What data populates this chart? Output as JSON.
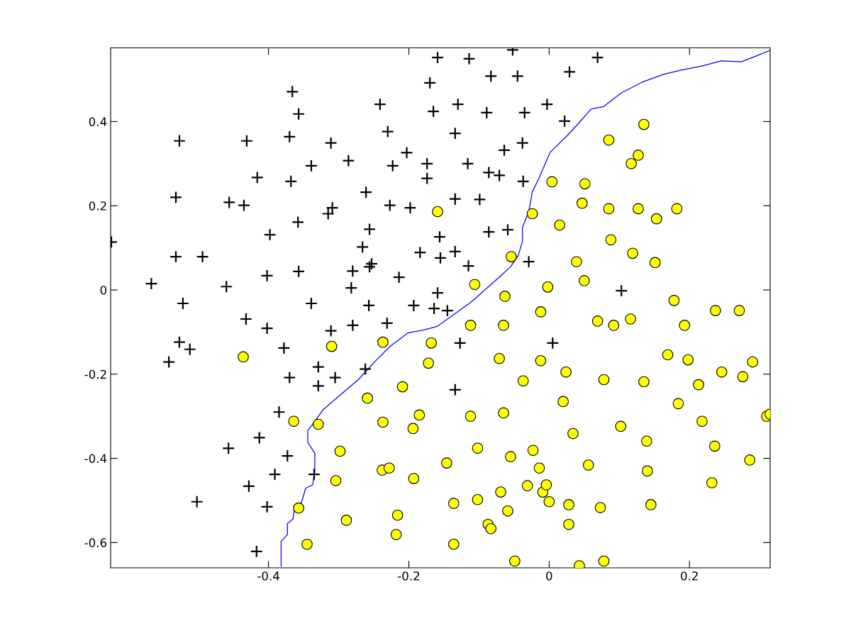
{
  "chart_data": {
    "type": "scatter",
    "xlim": [
      -0.625,
      0.315
    ],
    "ylim": [
      -0.66,
      0.575
    ],
    "xticks": [
      -0.4,
      -0.2,
      0,
      0.2
    ],
    "yticks": [
      -0.6,
      -0.4,
      -0.2,
      0,
      0.2,
      0.4
    ],
    "grid": false,
    "series": [
      {
        "marker": "cross",
        "color": "#000000",
        "x": [
          -0.624,
          -0.567,
          -0.527,
          -0.532,
          -0.532,
          -0.522,
          -0.494,
          -0.527,
          -0.542,
          -0.512,
          -0.456,
          -0.435,
          -0.431,
          -0.416,
          -0.398,
          -0.402,
          -0.46,
          -0.432,
          -0.402,
          -0.366,
          -0.357,
          -0.37,
          -0.368,
          -0.358,
          -0.357,
          -0.339,
          -0.339,
          -0.378,
          -0.37,
          -0.385,
          -0.413,
          -0.373,
          -0.391,
          -0.428,
          -0.457,
          -0.502,
          -0.402,
          -0.417,
          -0.335,
          -0.329,
          -0.329,
          -0.311,
          -0.309,
          -0.315,
          -0.311,
          -0.305,
          -0.286,
          -0.28,
          -0.282,
          -0.28,
          -0.241,
          -0.23,
          -0.261,
          -0.266,
          -0.256,
          -0.256,
          -0.253,
          -0.257,
          -0.262,
          -0.223,
          -0.227,
          -0.214,
          -0.231,
          -0.203,
          -0.198,
          -0.193,
          -0.184,
          -0.174,
          -0.174,
          -0.159,
          -0.17,
          -0.165,
          -0.164,
          -0.159,
          -0.156,
          -0.155,
          -0.145,
          -0.134,
          -0.134,
          -0.134,
          -0.13,
          -0.134,
          -0.127,
          -0.114,
          -0.116,
          -0.115,
          -0.099,
          -0.083,
          -0.089,
          -0.086,
          -0.071,
          -0.086,
          -0.064,
          -0.059,
          -0.052,
          -0.045,
          -0.035,
          -0.038,
          -0.037,
          -0.003,
          -0.029,
          0.029,
          0.022,
          0.069,
          0.005,
          0.103
        ],
        "values": [
          0.114,
          0.015,
          0.354,
          0.22,
          0.079,
          -0.032,
          0.079,
          -0.124,
          -0.171,
          -0.141,
          0.208,
          0.201,
          0.354,
          0.267,
          0.131,
          0.034,
          0.008,
          -0.069,
          -0.091,
          0.471,
          0.418,
          0.364,
          0.258,
          0.161,
          0.044,
          0.295,
          -0.032,
          -0.138,
          -0.208,
          -0.29,
          -0.351,
          -0.394,
          -0.438,
          -0.466,
          -0.376,
          -0.503,
          -0.515,
          -0.621,
          -0.438,
          -0.183,
          -0.228,
          0.349,
          0.195,
          0.181,
          -0.097,
          -0.208,
          0.307,
          0.045,
          0.005,
          -0.084,
          0.441,
          0.376,
          0.232,
          0.102,
          0.144,
          0.055,
          0.062,
          -0.037,
          -0.188,
          0.295,
          0.201,
          0.03,
          -0.079,
          0.326,
          0.195,
          -0.037,
          0.089,
          0.3,
          0.265,
          0.552,
          0.492,
          0.424,
          -0.044,
          -0.007,
          0.126,
          0.076,
          -0.049,
          0.372,
          0.216,
          0.091,
          0.441,
          -0.237,
          -0.126,
          0.549,
          0.3,
          0.057,
          0.215,
          0.508,
          0.421,
          0.279,
          0.272,
          0.138,
          0.332,
          0.143,
          0.57,
          0.508,
          0.421,
          0.349,
          0.258,
          0.441,
          0.067,
          0.518,
          0.401,
          0.552,
          -0.126,
          -0.002
        ]
      },
      {
        "marker": "circle",
        "color": "#ffff00",
        "x": [
          -0.436,
          -0.31,
          -0.364,
          -0.329,
          -0.298,
          -0.304,
          -0.289,
          -0.357,
          -0.345,
          -0.259,
          -0.237,
          -0.237,
          -0.238,
          -0.228,
          -0.209,
          -0.216,
          -0.218,
          -0.193,
          -0.194,
          -0.185,
          -0.159,
          -0.168,
          -0.172,
          -0.146,
          -0.136,
          -0.136,
          -0.112,
          -0.112,
          -0.102,
          -0.102,
          -0.106,
          -0.063,
          -0.065,
          -0.071,
          -0.065,
          -0.069,
          -0.087,
          -0.083,
          -0.059,
          -0.054,
          -0.055,
          -0.049,
          -0.037,
          -0.031,
          -0.023,
          -0.012,
          -0.012,
          -0.014,
          -0.009,
          -0.004,
          0.0,
          -0.024,
          0.004,
          -0.002,
          0.015,
          0.02,
          0.024,
          0.028,
          0.028,
          0.034,
          0.039,
          0.043,
          0.047,
          0.051,
          0.05,
          0.056,
          0.069,
          0.073,
          0.078,
          0.078,
          0.085,
          0.085,
          0.088,
          0.092,
          0.102,
          0.116,
          0.117,
          0.119,
          0.127,
          0.127,
          0.135,
          0.135,
          0.139,
          0.14,
          0.145,
          0.153,
          0.151,
          0.169,
          0.178,
          0.182,
          0.184,
          0.193,
          0.198,
          0.213,
          0.218,
          0.232,
          0.236,
          0.237,
          0.246,
          0.271,
          0.276,
          0.29,
          0.286,
          0.31,
          0.315
        ],
        "values": [
          -0.159,
          -0.134,
          -0.312,
          -0.319,
          -0.383,
          -0.453,
          -0.547,
          -0.518,
          -0.604,
          -0.257,
          -0.124,
          -0.314,
          -0.428,
          -0.423,
          -0.23,
          -0.535,
          -0.581,
          -0.448,
          -0.329,
          -0.297,
          0.186,
          -0.126,
          -0.174,
          -0.411,
          -0.507,
          -0.604,
          -0.084,
          -0.3,
          -0.376,
          -0.498,
          0.013,
          -0.015,
          -0.084,
          -0.163,
          -0.292,
          -0.48,
          -0.557,
          -0.567,
          -0.525,
          0.079,
          -0.396,
          -0.644,
          -0.216,
          -0.465,
          -0.381,
          -0.168,
          -0.052,
          -0.423,
          -0.48,
          -0.463,
          -0.503,
          0.181,
          0.257,
          0.007,
          0.154,
          -0.265,
          -0.195,
          -0.51,
          -0.557,
          -0.341,
          0.067,
          -0.655,
          0.206,
          0.252,
          0.022,
          -0.416,
          -0.074,
          -0.517,
          -0.644,
          -0.213,
          0.356,
          0.193,
          0.119,
          -0.084,
          -0.324,
          -0.069,
          0.3,
          0.087,
          0.32,
          0.193,
          0.393,
          -0.218,
          -0.359,
          -0.43,
          -0.51,
          0.169,
          0.065,
          -0.154,
          -0.025,
          0.193,
          -0.27,
          -0.084,
          -0.166,
          -0.225,
          -0.312,
          -0.458,
          -0.371,
          -0.049,
          -0.195,
          -0.049,
          -0.206,
          -0.171,
          -0.404,
          -0.3,
          -0.295
        ]
      },
      {
        "type": "line",
        "marker": "none",
        "line_style": "solid",
        "color": "#0000ff",
        "x": [
          -0.382,
          -0.382,
          -0.373,
          -0.373,
          -0.365,
          -0.363,
          -0.353,
          -0.347,
          -0.337,
          -0.334,
          -0.334,
          -0.344,
          -0.344,
          -0.334,
          -0.322,
          -0.272,
          -0.246,
          -0.226,
          -0.201,
          -0.176,
          -0.159,
          -0.112,
          -0.07,
          -0.055,
          -0.044,
          -0.038,
          -0.038,
          -0.029,
          -0.024,
          -0.014,
          0.001,
          0.026,
          0.041,
          0.06,
          0.077,
          0.103,
          0.132,
          0.163,
          0.188,
          0.218,
          0.245,
          0.274,
          0.294,
          0.315
        ],
        "values": [
          -0.656,
          -0.597,
          -0.581,
          -0.555,
          -0.544,
          -0.518,
          -0.505,
          -0.471,
          -0.463,
          -0.43,
          -0.388,
          -0.362,
          -0.334,
          -0.312,
          -0.284,
          -0.213,
          -0.166,
          -0.133,
          -0.102,
          -0.094,
          -0.086,
          -0.03,
          0.032,
          0.055,
          0.082,
          0.116,
          0.149,
          0.186,
          0.233,
          0.267,
          0.326,
          0.367,
          0.394,
          0.43,
          0.435,
          0.468,
          0.493,
          0.512,
          0.522,
          0.532,
          0.544,
          0.542,
          0.555,
          0.569
        ]
      }
    ]
  }
}
